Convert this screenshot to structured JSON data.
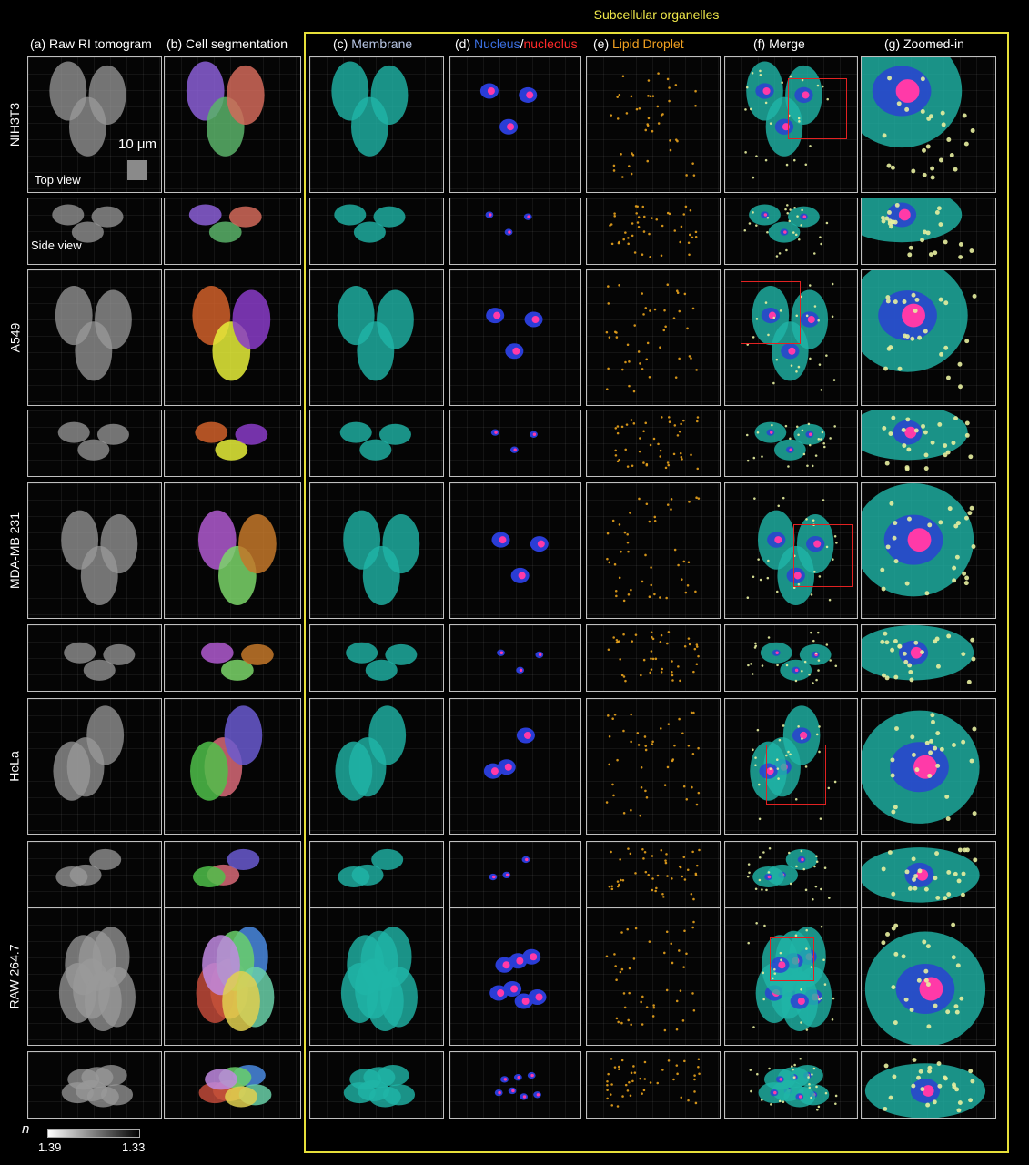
{
  "figure": {
    "group_title": "Subcellular organelles",
    "columns": [
      {
        "id": "a",
        "label": "(a) Raw RI tomogram"
      },
      {
        "id": "b",
        "label": "(b) Cell segmentation"
      },
      {
        "id": "c",
        "label_prefix": "(c) ",
        "label_parts": [
          {
            "text": "Membrane",
            "color": "#b9c7e6"
          }
        ]
      },
      {
        "id": "d",
        "label_prefix": "(d) ",
        "label_parts": [
          {
            "text": "Nucleus",
            "color": "#3b6fe0"
          },
          {
            "text": "/",
            "color": "#ffffff"
          },
          {
            "text": "nucleolus",
            "color": "#ff2a2a"
          }
        ]
      },
      {
        "id": "e",
        "label_prefix": "(e) ",
        "label_parts": [
          {
            "text": "Lipid Droplet",
            "color": "#f0a020"
          }
        ]
      },
      {
        "id": "f",
        "label": "(f) Merge"
      },
      {
        "id": "g",
        "label": "(g) Zoomed-in"
      }
    ],
    "rows": [
      {
        "label": "NIH3T3"
      },
      {
        "label": "A549"
      },
      {
        "label": "MDA-MB 231"
      },
      {
        "label": "HeLa"
      },
      {
        "label": "RAW 264.7"
      }
    ],
    "annotations": {
      "scale_label": "10 μm",
      "top_view": "Top view",
      "side_view": "Side view"
    },
    "colorbar": {
      "symbol": "n",
      "left_value": "1.39",
      "right_value": "1.33"
    },
    "colors": {
      "frame": "#e6df3a",
      "membrane": "#1fb5a8",
      "nucleus": "#2a3dd6",
      "nucleolus": "#ff3aa8",
      "lipid": "#e8a21c",
      "zoom_box": "#e22222"
    }
  }
}
